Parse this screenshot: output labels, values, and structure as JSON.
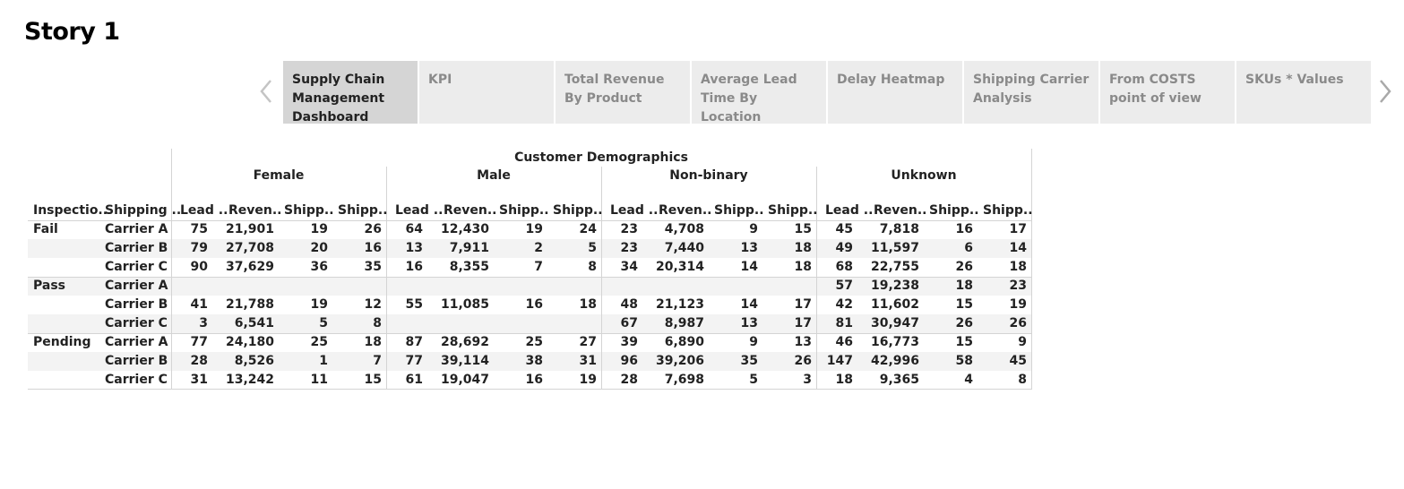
{
  "story": {
    "title": "Story 1"
  },
  "tabs": [
    {
      "label": "Supply Chain Management Dashboard",
      "active": true
    },
    {
      "label": "KPI",
      "active": false
    },
    {
      "label": "Total Revenue By Product",
      "active": false
    },
    {
      "label": "Average Lead Time By Location",
      "active": false
    },
    {
      "label": "Delay Heatmap",
      "active": false
    },
    {
      "label": "Shipping Carrier Analysis",
      "active": false
    },
    {
      "label": "From COSTS point of view",
      "active": false
    },
    {
      "label": "SKUs * Values",
      "active": false
    }
  ],
  "icons": {
    "prev": "chevron-left-icon",
    "next": "chevron-right-icon"
  },
  "table": {
    "super_header": "Customer Demographics",
    "groups": [
      "Female",
      "Male",
      "Non-binary",
      "Unknown"
    ],
    "row_headers": [
      "Inspectio..",
      "Shipping .."
    ],
    "measure_headers": [
      "Lead ..",
      "Reven..",
      "Shipp..",
      "Shipp.."
    ],
    "rows": [
      {
        "inspection": "Fail",
        "carrier": "Carrier A",
        "cells": [
          [
            "75",
            "21,901",
            "19",
            "26"
          ],
          [
            "64",
            "12,430",
            "19",
            "24"
          ],
          [
            "23",
            "4,708",
            "9",
            "15"
          ],
          [
            "45",
            "7,818",
            "16",
            "17"
          ]
        ]
      },
      {
        "inspection": "",
        "carrier": "Carrier B",
        "cells": [
          [
            "79",
            "27,708",
            "20",
            "16"
          ],
          [
            "13",
            "7,911",
            "2",
            "5"
          ],
          [
            "23",
            "7,440",
            "13",
            "18"
          ],
          [
            "49",
            "11,597",
            "6",
            "14"
          ]
        ]
      },
      {
        "inspection": "",
        "carrier": "Carrier C",
        "cells": [
          [
            "90",
            "37,629",
            "36",
            "35"
          ],
          [
            "16",
            "8,355",
            "7",
            "8"
          ],
          [
            "34",
            "20,314",
            "14",
            "18"
          ],
          [
            "68",
            "22,755",
            "26",
            "18"
          ]
        ]
      },
      {
        "inspection": "Pass",
        "carrier": "Carrier A",
        "cells": [
          [
            "",
            "",
            "",
            ""
          ],
          [
            "",
            "",
            "",
            ""
          ],
          [
            "",
            "",
            "",
            ""
          ],
          [
            "57",
            "19,238",
            "18",
            "23"
          ]
        ]
      },
      {
        "inspection": "",
        "carrier": "Carrier B",
        "cells": [
          [
            "41",
            "21,788",
            "19",
            "12"
          ],
          [
            "55",
            "11,085",
            "16",
            "18"
          ],
          [
            "48",
            "21,123",
            "14",
            "17"
          ],
          [
            "42",
            "11,602",
            "15",
            "19"
          ]
        ]
      },
      {
        "inspection": "",
        "carrier": "Carrier C",
        "cells": [
          [
            "3",
            "6,541",
            "5",
            "8"
          ],
          [
            "",
            "",
            "",
            ""
          ],
          [
            "67",
            "8,987",
            "13",
            "17"
          ],
          [
            "81",
            "30,947",
            "26",
            "26"
          ]
        ]
      },
      {
        "inspection": "Pending",
        "carrier": "Carrier A",
        "cells": [
          [
            "77",
            "24,180",
            "25",
            "18"
          ],
          [
            "87",
            "28,692",
            "25",
            "27"
          ],
          [
            "39",
            "6,890",
            "9",
            "13"
          ],
          [
            "46",
            "16,773",
            "15",
            "9"
          ]
        ]
      },
      {
        "inspection": "",
        "carrier": "Carrier B",
        "cells": [
          [
            "28",
            "8,526",
            "1",
            "7"
          ],
          [
            "77",
            "39,114",
            "38",
            "31"
          ],
          [
            "96",
            "39,206",
            "35",
            "26"
          ],
          [
            "147",
            "42,996",
            "58",
            "45"
          ]
        ]
      },
      {
        "inspection": "",
        "carrier": "Carrier C",
        "cells": [
          [
            "31",
            "13,242",
            "11",
            "15"
          ],
          [
            "61",
            "19,047",
            "16",
            "19"
          ],
          [
            "28",
            "7,698",
            "5",
            "3"
          ],
          [
            "18",
            "9,365",
            "4",
            "8"
          ]
        ]
      }
    ]
  }
}
